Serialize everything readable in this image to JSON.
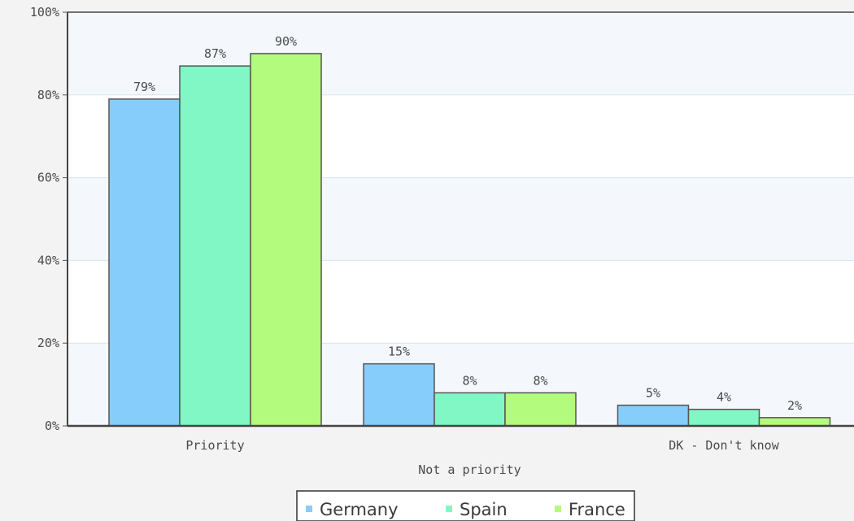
{
  "chart_data": {
    "type": "bar",
    "title": "",
    "xlabel": "",
    "ylabel": "",
    "categories": [
      "Priority",
      "Not a priority",
      "DK - Don't know"
    ],
    "series": [
      {
        "name": "Germany",
        "values": [
          79,
          15,
          5
        ],
        "color": "#87cdfb"
      },
      {
        "name": "Spain",
        "values": [
          87,
          8,
          4
        ],
        "color": "#80f7c4"
      },
      {
        "name": "France",
        "values": [
          90,
          8,
          2
        ],
        "color": "#b3fb7c"
      }
    ],
    "value_labels": [
      [
        "79%",
        "15%",
        "5%"
      ],
      [
        "87%",
        "8%",
        "4%"
      ],
      [
        "90%",
        "8%",
        "2%"
      ]
    ],
    "ylim": [
      0,
      100
    ],
    "yticks": [
      0,
      20,
      40,
      60,
      80,
      100
    ],
    "ytick_labels": [
      "0%",
      "20%",
      "40%",
      "60%",
      "80%",
      "100%"
    ],
    "grid": true,
    "legend_position": "bottom"
  }
}
